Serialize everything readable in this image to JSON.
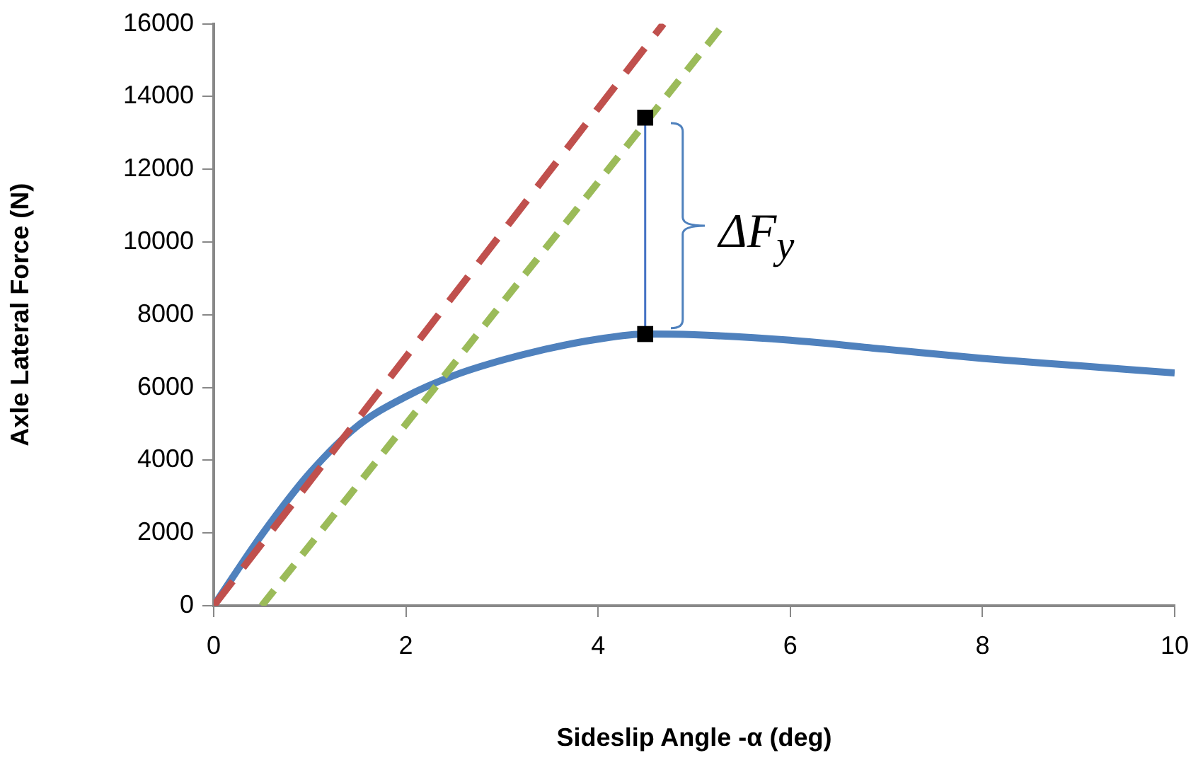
{
  "chart_data": {
    "type": "line",
    "xlabel": "Sideslip Angle -α (deg)",
    "ylabel": "Axle Lateral Force (N)",
    "xlim": [
      0,
      10
    ],
    "xticks": [
      0,
      2,
      4,
      6,
      8,
      10
    ],
    "ylim": [
      0,
      16000
    ],
    "yticks": [
      0,
      2000,
      4000,
      6000,
      8000,
      10000,
      12000,
      14000,
      16000
    ],
    "grid": false,
    "legend": false,
    "marker": "none",
    "series": [
      {
        "color": "#c0504d",
        "line_style": "dashed",
        "x": [
          0,
          4.68
        ],
        "values": [
          0,
          16000
        ]
      },
      {
        "color": "#9bbb59",
        "line_style": "dashed",
        "x": [
          0.5,
          5.31
        ],
        "values": [
          0,
          16000
        ]
      },
      {
        "color": "#4f81bd",
        "line_style": "solid",
        "x": [
          0,
          0.5,
          1,
          1.5,
          2,
          2.5,
          3,
          3.5,
          4,
          4.5,
          5,
          6,
          7,
          8,
          9,
          10
        ],
        "values": [
          0,
          1950,
          3650,
          4950,
          5750,
          6330,
          6750,
          7080,
          7330,
          7470,
          7450,
          7300,
          7050,
          6800,
          6600,
          6400
        ]
      },
      {
        "color": "#4472c4",
        "line_style": "solid",
        "x": [
          4.49,
          4.49
        ],
        "values": [
          7470,
          13420
        ]
      },
      {
        "type": "scatter",
        "color": "#000000",
        "marker": "square",
        "x": [
          4.49,
          4.49
        ],
        "values": [
          7470,
          13420
        ]
      }
    ],
    "annotations": [
      "ΔF$_{y}$"
    ]
  }
}
